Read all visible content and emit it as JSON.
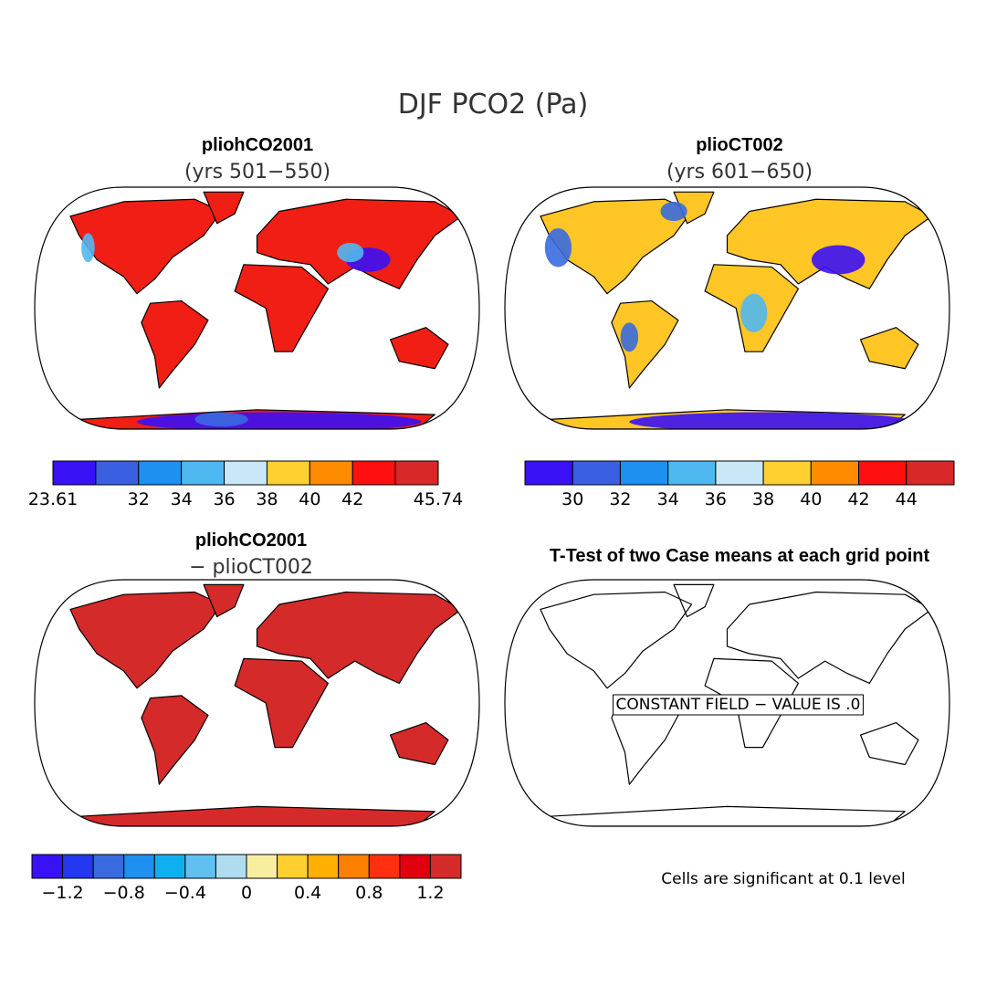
{
  "title": "DJF PCO2 (Pa)",
  "panels": [
    {
      "title": "pliohCO2001",
      "subtitle": "(yrs 501−550)",
      "map_color": "#f01e14",
      "colorbar": {
        "colors": [
          "#3a10f5",
          "#3a5fe0",
          "#1e90f0",
          "#50b8f0",
          "#c8e8f8",
          "#ffd030",
          "#ff8c00",
          "#ff1010",
          "#d82828"
        ],
        "labels": [
          "23.61",
          null,
          "32",
          "34",
          "36",
          "38",
          "40",
          "42",
          null,
          "45.74"
        ]
      }
    },
    {
      "title": "plioCT002",
      "subtitle": "(yrs 601−650)",
      "map_color": "#ffc626",
      "colorbar": {
        "colors": [
          "#3a10f5",
          "#3a5fe0",
          "#1e90f0",
          "#50b8f0",
          "#c8e8f8",
          "#ffd030",
          "#ff8c00",
          "#ff1010",
          "#d82828"
        ],
        "labels": [
          null,
          "30",
          "32",
          "34",
          "36",
          "38",
          "40",
          "42",
          "44",
          null
        ]
      }
    },
    {
      "title": "pliohCO2001",
      "subtitle": "− plioCT002",
      "map_color": "#d42a2a",
      "colorbar": {
        "colors": [
          "#3a10f5",
          "#2438f0",
          "#3a6ae0",
          "#1e90f0",
          "#10b0f0",
          "#60c0f0",
          "#b0dcf0",
          "#f8eea0",
          "#ffd030",
          "#ffb000",
          "#ff8000",
          "#ff3010",
          "#e00010",
          "#d42a2a"
        ],
        "labels": [
          "−1.2",
          "−0.8",
          "−0.4",
          "0",
          "0.4",
          "0.8",
          "1.2"
        ]
      }
    },
    {
      "title": "T-Test of two Case means at each grid point",
      "annotation": "CONSTANT FIELD − VALUE IS .0",
      "footer": "Cells are significant at 0.1 level"
    }
  ]
}
